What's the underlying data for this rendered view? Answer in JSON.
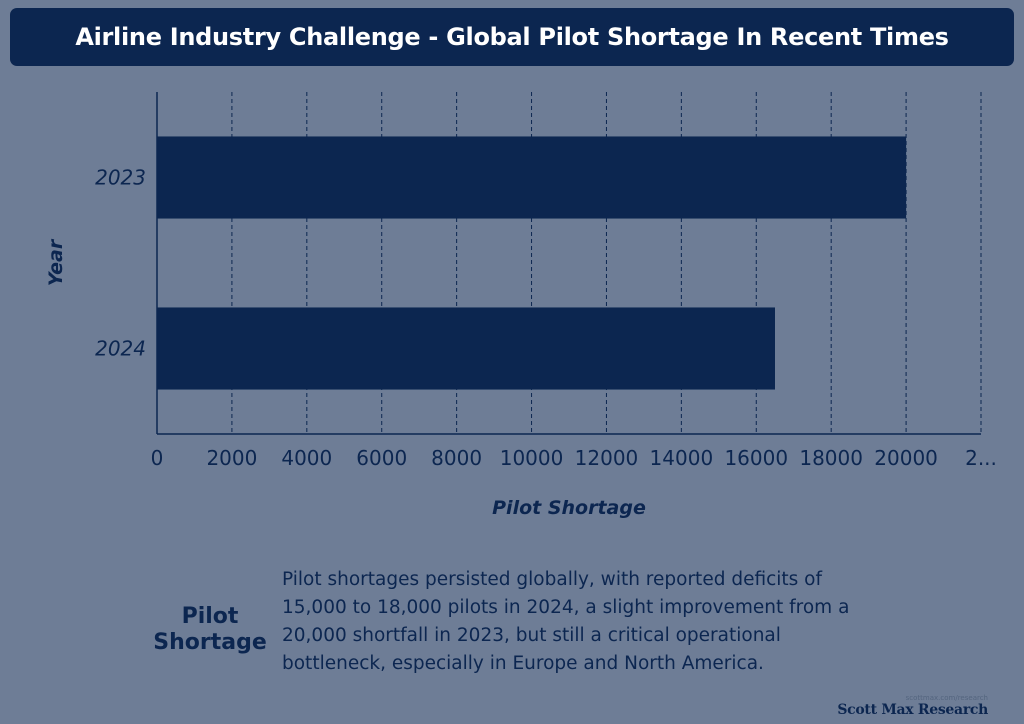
{
  "header": {
    "title": "Airline Industry Challenge - Global Pilot Shortage In Recent Times"
  },
  "chart_data": {
    "type": "bar",
    "orientation": "horizontal",
    "categories": [
      "2023",
      "2024"
    ],
    "values": [
      20000,
      16500
    ],
    "xlabel": "Pilot Shortage",
    "ylabel": "Year",
    "xlim": [
      0,
      22000
    ],
    "x_ticks": [
      "0",
      "2000",
      "4000",
      "6000",
      "8000",
      "10000",
      "12000",
      "14000",
      "16000",
      "18000",
      "20000",
      "2..."
    ],
    "grid": "vertical dashed",
    "bar_color": "#0c2650"
  },
  "footer": {
    "label_line1": "Pilot",
    "label_line2": "Shortage",
    "description": "Pilot shortages persisted globally, with reported deficits of 15,000 to 18,000 pilots in 2024, a slight improvement from a 20,000 shortfall in 2023, but still a critical operational bottleneck, especially in Europe and North America."
  },
  "brand": {
    "url": "scottmax.com/research",
    "name": "Scott Max Research"
  }
}
